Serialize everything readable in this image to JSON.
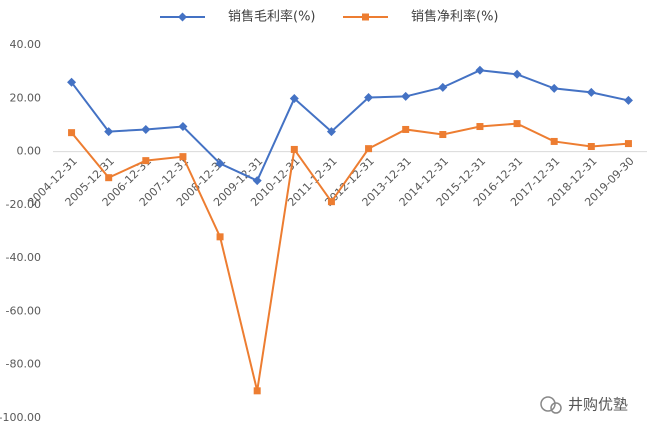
{
  "chart_data": {
    "type": "line",
    "categories": [
      "2004-12-31",
      "2005-12-31",
      "2006-12-31",
      "2007-12-31",
      "2008-12-31",
      "2009-12-31",
      "2010-12-31",
      "2011-12-31",
      "2012-12-31",
      "2013-12-31",
      "2014-12-31",
      "2015-12-31",
      "2016-12-31",
      "2017-12-31",
      "2018-12-31",
      "2019-09-30"
    ],
    "series": [
      {
        "name": "销售毛利率(%)",
        "color": "#4472c4",
        "marker": "diamond",
        "values": [
          26,
          7.5,
          8.3,
          9.4,
          -4.5,
          -10.9,
          19.9,
          7.5,
          20.3,
          20.7,
          24.1,
          30.5,
          29,
          23.7,
          22.2,
          19.2
        ]
      },
      {
        "name": "销售净利率(%)",
        "color": "#ed7d31",
        "marker": "square",
        "values": [
          7.1,
          -9.8,
          -3.4,
          -1.9,
          -32,
          -89.8,
          0.8,
          -18.8,
          1.1,
          8.3,
          6.4,
          9.4,
          10.5,
          3.8,
          1.9,
          3
        ]
      }
    ],
    "ylim": [
      -100,
      40
    ],
    "yticks": [
      {
        "value": -100,
        "label": "-100.00"
      },
      {
        "value": -80,
        "label": "-80.00"
      },
      {
        "value": -60,
        "label": "-60.00"
      },
      {
        "value": -40,
        "label": "-40.00"
      },
      {
        "value": -20,
        "label": "-20.00"
      },
      {
        "value": 0,
        "label": "0.00"
      },
      {
        "value": 20,
        "label": "20.00"
      },
      {
        "value": 40,
        "label": "40.00"
      }
    ],
    "grid": false,
    "legend": "top",
    "annotation": "井购优塾"
  }
}
